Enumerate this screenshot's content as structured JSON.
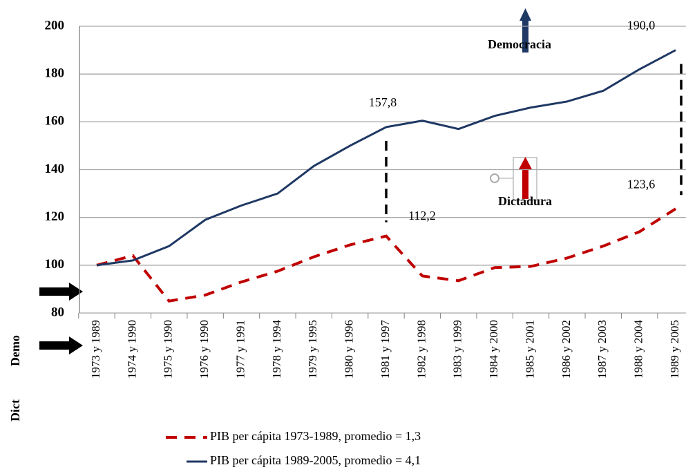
{
  "chart_data": {
    "type": "line",
    "categories": [
      "1973 y 1989",
      "1974 y 1990",
      "1975 y 1990",
      "1976 y 1990",
      "1977 y 1991",
      "1978 y 1994",
      "1979 y 1995",
      "1980 y 1996",
      "1981 y 1997",
      "1982 y 1998",
      "1983 y 1999",
      "1984 y 2000",
      "1985 y 2001",
      "1986 y 2002",
      "1987 y 2003",
      "1988 y 2004",
      "1989 y 2005"
    ],
    "series": [
      {
        "name": "PIB per cápita 1973-1989, promedio = 1,3",
        "color": "#c00000",
        "dashed": true,
        "values": [
          100,
          104,
          85,
          87.5,
          93,
          97.5,
          103.5,
          108.5,
          112.2,
          95.5,
          93.5,
          99,
          99.5,
          103,
          108,
          114,
          123.6
        ],
        "value_labels": [
          null,
          null,
          null,
          null,
          null,
          null,
          null,
          null,
          "112,2",
          null,
          null,
          null,
          null,
          null,
          null,
          null,
          "123,6"
        ]
      },
      {
        "name": "PIB per cápita 1989-2005, promedio = 4,1",
        "color": "#1f3864",
        "dashed": false,
        "values": [
          100,
          102,
          108,
          119,
          125,
          130,
          141.5,
          150,
          157.8,
          160.5,
          157,
          162.5,
          166,
          168.5,
          173,
          182,
          190.0
        ],
        "value_labels": [
          null,
          null,
          null,
          null,
          null,
          null,
          null,
          null,
          "157,8",
          null,
          null,
          null,
          null,
          null,
          null,
          null,
          "190,0"
        ]
      }
    ],
    "ylim": [
      80,
      200
    ],
    "yticks": [
      80,
      100,
      120,
      140,
      160,
      180,
      200
    ],
    "grid": true,
    "legend": "bottom",
    "annotations": [
      "Democracia",
      "Dictadura",
      "Dict",
      "Demo"
    ]
  }
}
